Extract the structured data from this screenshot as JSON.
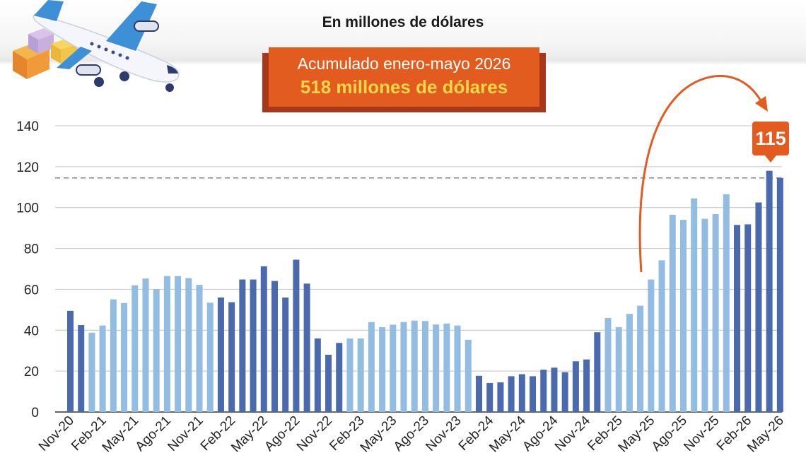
{
  "header": {
    "subtitle": "En millones de dólares"
  },
  "banner": {
    "line1": "Acumulado enero-mayo 2026",
    "line2": "518 millones de dólares"
  },
  "callout": {
    "value_label": "115"
  },
  "chart_data": {
    "type": "bar",
    "title": "",
    "xlabel": "",
    "ylabel": "",
    "ylim": [
      0,
      140
    ],
    "yticks": [
      0,
      20,
      40,
      60,
      80,
      100,
      120,
      140
    ],
    "grid": true,
    "reference_line": 114.5,
    "colors": {
      "dark": "#4a6aad",
      "light": "#93bce3",
      "accent": "#e25c1f"
    },
    "categories": [
      "Nov-20",
      "Dic-20",
      "Ene-21",
      "Feb-21",
      "Mar-21",
      "Abr-21",
      "May-21",
      "Jun-21",
      "Jul-21",
      "Ago-21",
      "Sep-21",
      "Oct-21",
      "Nov-21",
      "Dic-21",
      "Ene-22",
      "Feb-22",
      "Mar-22",
      "Abr-22",
      "May-22",
      "Jun-22",
      "Jul-22",
      "Ago-22",
      "Sep-22",
      "Oct-22",
      "Nov-22",
      "Dic-22",
      "Ene-23",
      "Feb-23",
      "Mar-23",
      "Abr-23",
      "May-23",
      "Jun-23",
      "Jul-23",
      "Ago-23",
      "Sep-23",
      "Oct-23",
      "Nov-23",
      "Dic-23",
      "Ene-24",
      "Feb-24",
      "Mar-24",
      "Abr-24",
      "May-24",
      "Jun-24",
      "Jul-24",
      "Ago-24",
      "Sep-24",
      "Oct-24",
      "Nov-24",
      "Dic-24",
      "Ene-25",
      "Feb-25",
      "Mar-25",
      "Abr-25",
      "May-25",
      "Jun-25",
      "Jul-25",
      "Ago-25",
      "Sep-25",
      "Oct-25",
      "Nov-25",
      "Dic-25",
      "Ene-26",
      "Feb-26",
      "Mar-26",
      "Abr-26",
      "May-26"
    ],
    "values": [
      49.5,
      42.5,
      38.8,
      42.3,
      55.1,
      53.3,
      62,
      65.3,
      60,
      66.5,
      66.5,
      65.5,
      62.2,
      53.5,
      56,
      53.7,
      64.8,
      64.8,
      71.3,
      64.1,
      56,
      74.5,
      62.8,
      36,
      28,
      33.8,
      36,
      36,
      44,
      41.5,
      42.7,
      44,
      44.7,
      44.5,
      42.8,
      43.3,
      42.3,
      35.3,
      17.7,
      14.2,
      14.5,
      17.5,
      18.5,
      17.5,
      20.7,
      21.7,
      19.5,
      24.8,
      25.7,
      39,
      46,
      41.5,
      48,
      52,
      64.8,
      74.2,
      96.5,
      94,
      104.5,
      94.5,
      96.8,
      106.5,
      91.5,
      91.8,
      102.5,
      118,
      114.5
    ],
    "shades": [
      "dark",
      "dark",
      "light",
      "light",
      "light",
      "light",
      "light",
      "light",
      "light",
      "light",
      "light",
      "light",
      "light",
      "light",
      "dark",
      "dark",
      "dark",
      "dark",
      "dark",
      "dark",
      "dark",
      "dark",
      "dark",
      "dark",
      "dark",
      "dark",
      "light",
      "light",
      "light",
      "light",
      "light",
      "light",
      "light",
      "light",
      "light",
      "light",
      "light",
      "light",
      "dark",
      "dark",
      "dark",
      "dark",
      "dark",
      "dark",
      "dark",
      "dark",
      "dark",
      "dark",
      "dark",
      "dark",
      "light",
      "light",
      "light",
      "light",
      "light",
      "light",
      "light",
      "light",
      "light",
      "light",
      "light",
      "light",
      "dark",
      "dark",
      "dark",
      "dark",
      "dark"
    ],
    "tick_labels": [
      {
        "index": 0,
        "label": "Nov-20"
      },
      {
        "index": 3,
        "label": "Feb-21"
      },
      {
        "index": 6,
        "label": "May-21"
      },
      {
        "index": 9,
        "label": "Ago-21"
      },
      {
        "index": 12,
        "label": "Nov-21"
      },
      {
        "index": 15,
        "label": "Feb-22"
      },
      {
        "index": 18,
        "label": "May-22"
      },
      {
        "index": 21,
        "label": "Ago-22"
      },
      {
        "index": 24,
        "label": "Nov-22"
      },
      {
        "index": 27,
        "label": "Feb-23"
      },
      {
        "index": 30,
        "label": "May-23"
      },
      {
        "index": 33,
        "label": "Ago-23"
      },
      {
        "index": 36,
        "label": "Nov-23"
      },
      {
        "index": 39,
        "label": "Feb-24"
      },
      {
        "index": 42,
        "label": "May-24"
      },
      {
        "index": 45,
        "label": "Ago-24"
      },
      {
        "index": 48,
        "label": "Nov-24"
      },
      {
        "index": 51,
        "label": "Feb-25"
      },
      {
        "index": 54,
        "label": "May-25"
      },
      {
        "index": 57,
        "label": "Ago-25"
      },
      {
        "index": 60,
        "label": "Nov-25"
      },
      {
        "index": 63,
        "label": "Feb-26"
      },
      {
        "index": 66,
        "label": "May-26"
      }
    ]
  },
  "icons": {
    "illustration": "airplane-with-boxes-icon"
  }
}
